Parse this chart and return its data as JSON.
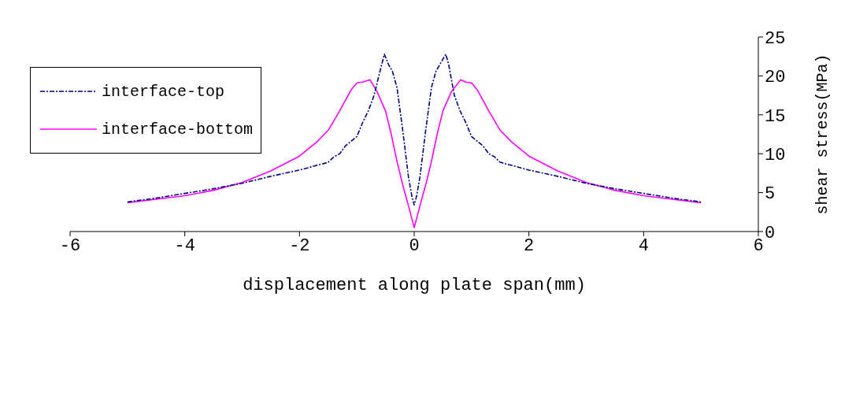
{
  "chart_data": {
    "type": "line",
    "xlabel": "displacement along plate span(mm)",
    "ylabel": "shear stress(MPa)",
    "xlim": [
      -6,
      6
    ],
    "xticks": [
      -6,
      -4,
      -2,
      0,
      2,
      4,
      6
    ],
    "ylim": [
      0,
      25
    ],
    "yticks": [
      0,
      5,
      10,
      15,
      20,
      25
    ],
    "grid": false,
    "legend": "top left",
    "marker": "none",
    "series": [
      {
        "name": "interface-top",
        "color": "#000080",
        "line_style": "dashed",
        "x": [
          -5,
          -4.5,
          -4,
          -3.5,
          -3,
          -2.5,
          -2,
          -1.5,
          -1.4,
          -1.3,
          -1.2,
          -1.1,
          -1,
          -0.9,
          -0.8,
          -0.7,
          -0.6,
          -0.52,
          -0.45,
          -0.38,
          -0.3,
          -0.2,
          -0.1,
          -0.04,
          0,
          0.04,
          0.1,
          0.2,
          0.3,
          0.38,
          0.45,
          0.55,
          0.6,
          0.7,
          0.8,
          0.9,
          1,
          1.1,
          1.2,
          1.3,
          1.4,
          1.5,
          2,
          2.5,
          3,
          3.5,
          4,
          4.5,
          5
        ],
        "values": [
          3.8,
          4.3,
          4.9,
          5.5,
          6.2,
          7.1,
          7.9,
          8.9,
          9.6,
          10,
          11,
          11.6,
          12.2,
          14,
          15.5,
          17.5,
          20.5,
          22.8,
          21.5,
          20.6,
          18.5,
          13,
          7,
          4.5,
          3.4,
          4.5,
          7,
          13,
          18.5,
          20.6,
          21.5,
          22.8,
          21.5,
          17.5,
          15.5,
          14,
          12.2,
          11.6,
          11,
          10,
          9.6,
          8.9,
          7.9,
          7.1,
          6.2,
          5.5,
          4.9,
          4.3,
          3.8
        ]
      },
      {
        "name": "interface-bottom",
        "color": "#ff00ff",
        "line_style": "solid",
        "x": [
          -5,
          -4,
          -3.5,
          -3,
          -2.5,
          -2,
          -1.7,
          -1.5,
          -1.3,
          -1.1,
          -1,
          -0.9,
          -0.77,
          -0.65,
          -0.5,
          -0.4,
          -0.3,
          -0.2,
          -0.1,
          0,
          0.1,
          0.2,
          0.3,
          0.4,
          0.5,
          0.65,
          0.81,
          0.9,
          1,
          1.1,
          1.3,
          1.5,
          1.7,
          2,
          2.5,
          3,
          3.5,
          4,
          5
        ],
        "values": [
          3.7,
          4.6,
          5.3,
          6.3,
          7.8,
          9.7,
          11.5,
          13,
          15.5,
          18.2,
          19.1,
          19.2,
          19.5,
          18,
          15.5,
          12.5,
          9,
          6,
          3.3,
          0.5,
          3.3,
          6,
          9,
          12.5,
          15.5,
          18,
          19.5,
          19.2,
          19.1,
          18.2,
          15.5,
          13,
          11.5,
          9.7,
          7.8,
          6.3,
          5.3,
          4.6,
          3.7
        ]
      }
    ]
  }
}
